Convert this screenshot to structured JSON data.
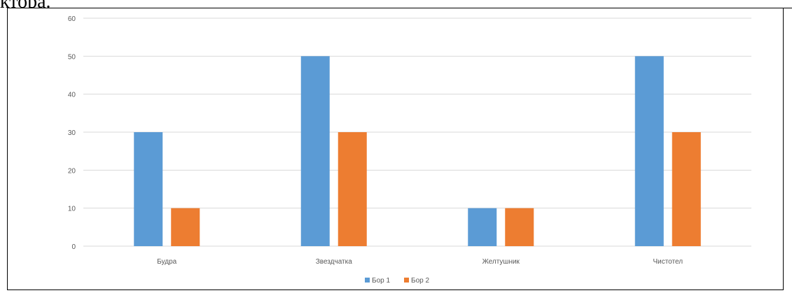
{
  "document": {
    "text_fragment": "ктора."
  },
  "colors": {
    "series1": "#5B9BD5",
    "series2": "#ED7D31",
    "grid": "#d9d9d9",
    "axis_text": "#595959"
  },
  "chart_data": {
    "type": "bar",
    "title": "",
    "xlabel": "",
    "ylabel": "",
    "categories": [
      "Будра",
      "Звездчатка",
      "Желтушник",
      "Чистотел"
    ],
    "series": [
      {
        "name": "Бор 1",
        "values": [
          30,
          50,
          10,
          50
        ]
      },
      {
        "name": "Бор 2",
        "values": [
          10,
          30,
          10,
          30
        ]
      }
    ],
    "ylim": [
      0,
      60
    ],
    "yticks": [
      0,
      10,
      20,
      30,
      40,
      50,
      60
    ],
    "grid": true,
    "legend": "bottom-center"
  }
}
